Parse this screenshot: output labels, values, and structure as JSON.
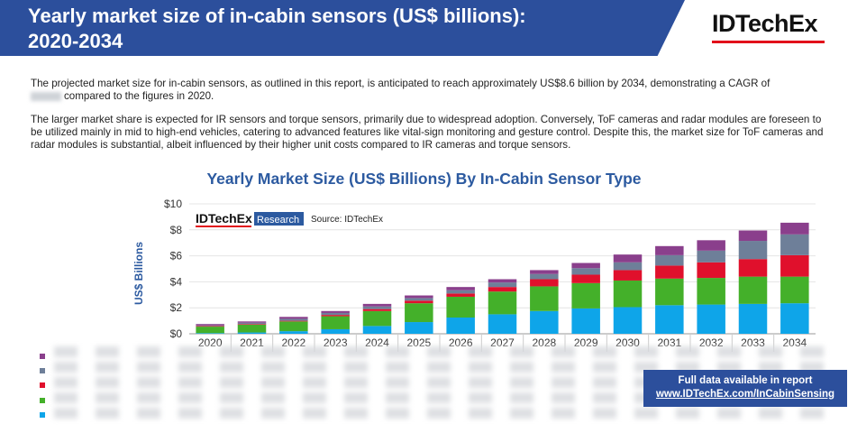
{
  "header": {
    "title": "Yearly market size of in-cabin sensors (US$ billions):\n2020-2034",
    "logo": "IDTechEx"
  },
  "intro": {
    "p1_before": "The projected market size for in-cabin sensors, as outlined in this report, is anticipated to reach approximately US$8.6 billion by 2034, demonstrating a CAGR of",
    "p1_after": "compared to the figures in 2020.",
    "p2": "The larger market share is expected for IR sensors and torque sensors, primarily due to widespread adoption. Conversely, ToF cameras and radar modules are foreseen to be utilized mainly in mid to high-end vehicles, catering to advanced features like vital-sign monitoring and gesture control. Despite this, the market size for ToF cameras and radar modules is substantial, albeit influenced by their higher unit costs compared to IR cameras and torque sensors."
  },
  "chart_data": {
    "type": "bar",
    "stacked": true,
    "title": "Yearly Market Size (US$ Billions) By In-Cabin Sensor Type",
    "ylabel": "US$ Billions",
    "xlabel": "",
    "ylim": [
      0,
      10
    ],
    "yticks": [
      0,
      2,
      4,
      6,
      8,
      10
    ],
    "ytick_labels": [
      "$0",
      "$2",
      "$4",
      "$6",
      "$8",
      "$10"
    ],
    "categories": [
      "2020",
      "2021",
      "2022",
      "2023",
      "2024",
      "2025",
      "2026",
      "2027",
      "2028",
      "2029",
      "2030",
      "2031",
      "2032",
      "2033",
      "2034"
    ],
    "watermark_brand": "IDTechEx",
    "watermark_tag": "Research",
    "source": "Source: IDTechEx",
    "series": [
      {
        "name": "",
        "color": "#0ea5e9",
        "values": [
          0.05,
          0.1,
          0.2,
          0.35,
          0.6,
          0.9,
          1.25,
          1.5,
          1.75,
          1.95,
          2.05,
          2.2,
          2.25,
          2.3,
          2.35
        ]
      },
      {
        "name": "",
        "color": "#44b02a",
        "values": [
          0.5,
          0.6,
          0.75,
          1.0,
          1.15,
          1.45,
          1.6,
          1.75,
          1.9,
          1.95,
          2.05,
          2.05,
          2.05,
          2.1,
          2.05
        ]
      },
      {
        "name": "",
        "color": "#e0102c",
        "values": [
          0.05,
          0.05,
          0.05,
          0.1,
          0.15,
          0.2,
          0.25,
          0.35,
          0.55,
          0.65,
          0.8,
          1.0,
          1.2,
          1.35,
          1.65
        ]
      },
      {
        "name": "",
        "color": "#6e7f99",
        "values": [
          0.05,
          0.1,
          0.15,
          0.15,
          0.2,
          0.2,
          0.25,
          0.35,
          0.4,
          0.5,
          0.6,
          0.8,
          0.9,
          1.4,
          1.6
        ]
      },
      {
        "name": "",
        "color": "#8a3f8c",
        "values": [
          0.1,
          0.1,
          0.15,
          0.15,
          0.2,
          0.2,
          0.25,
          0.25,
          0.3,
          0.4,
          0.6,
          0.7,
          0.8,
          0.8,
          0.9
        ]
      }
    ]
  },
  "cta": {
    "line1": "Full data available in report",
    "line2": "www.IDTechEx.com/InCabinSensing"
  }
}
